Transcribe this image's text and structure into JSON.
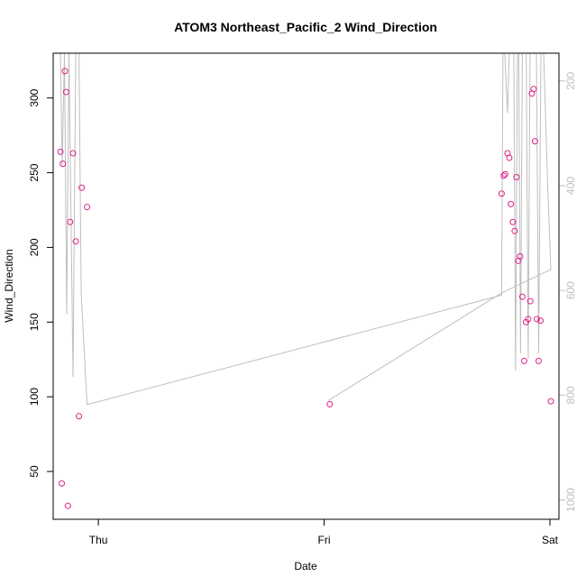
{
  "chart_data": {
    "type": "scatter",
    "title": "ATOM3 Northeast_Pacific_2 Wind_Direction",
    "xlabel": "Date",
    "ylabel": "Wind_Direction",
    "x_ticks": [
      {
        "label": "Thu",
        "x": 0
      },
      {
        "label": "Fri",
        "x": 1
      },
      {
        "label": "Sat",
        "x": 2
      }
    ],
    "xlim": [
      -0.2,
      2.04
    ],
    "ylim": [
      18,
      330
    ],
    "y_ticks": [
      50,
      100,
      150,
      200,
      250,
      300
    ],
    "y2lim": [
      1037,
      147
    ],
    "y2_ticks": [
      200,
      400,
      600,
      800,
      1000
    ],
    "grid": false,
    "colors": {
      "points": "#e0218a",
      "line": "#bebebe",
      "axis": "#000000",
      "right_axis": "#bebebe"
    },
    "series": [
      {
        "marker": "circle-open",
        "points": [
          {
            "x": -0.168,
            "y": 264
          },
          {
            "x": -0.162,
            "y": 42
          },
          {
            "x": -0.157,
            "y": 256
          },
          {
            "x": -0.148,
            "y": 318
          },
          {
            "x": -0.143,
            "y": 304
          },
          {
            "x": -0.135,
            "y": 27
          },
          {
            "x": -0.125,
            "y": 217
          },
          {
            "x": -0.112,
            "y": 263
          },
          {
            "x": -0.1,
            "y": 204
          },
          {
            "x": -0.086,
            "y": 87
          },
          {
            "x": -0.074,
            "y": 240
          },
          {
            "x": -0.05,
            "y": 227
          },
          {
            "x": 1.025,
            "y": 95
          },
          {
            "x": 1.786,
            "y": 236
          },
          {
            "x": 1.795,
            "y": 248
          },
          {
            "x": 1.802,
            "y": 249
          },
          {
            "x": 1.812,
            "y": 263
          },
          {
            "x": 1.82,
            "y": 260
          },
          {
            "x": 1.827,
            "y": 229
          },
          {
            "x": 1.836,
            "y": 217
          },
          {
            "x": 1.844,
            "y": 211
          },
          {
            "x": 1.852,
            "y": 247
          },
          {
            "x": 1.86,
            "y": 191
          },
          {
            "x": 1.868,
            "y": 194
          },
          {
            "x": 1.878,
            "y": 167
          },
          {
            "x": 1.886,
            "y": 124
          },
          {
            "x": 1.894,
            "y": 150
          },
          {
            "x": 1.904,
            "y": 152
          },
          {
            "x": 1.913,
            "y": 164
          },
          {
            "x": 1.92,
            "y": 303
          },
          {
            "x": 1.928,
            "y": 306
          },
          {
            "x": 1.934,
            "y": 271
          },
          {
            "x": 1.942,
            "y": 152
          },
          {
            "x": 1.95,
            "y": 124
          },
          {
            "x": 1.958,
            "y": 151
          },
          {
            "x": 2.004,
            "y": 97
          }
        ]
      },
      {
        "axis": "right",
        "style": "line",
        "points": [
          {
            "x": -0.168,
            "y": 147
          },
          {
            "x": -0.16,
            "y": 360
          },
          {
            "x": -0.15,
            "y": 147
          },
          {
            "x": -0.14,
            "y": 645
          },
          {
            "x": -0.13,
            "y": 147
          },
          {
            "x": -0.112,
            "y": 765
          },
          {
            "x": -0.1,
            "y": 147
          },
          {
            "x": -0.086,
            "y": 147
          },
          {
            "x": -0.076,
            "y": 607
          },
          {
            "x": -0.05,
            "y": 818
          },
          {
            "x": 1.786,
            "y": 609
          },
          {
            "x": 1.792,
            "y": 147
          },
          {
            "x": 1.8,
            "y": 147
          },
          {
            "x": 1.812,
            "y": 261
          },
          {
            "x": 1.82,
            "y": 147
          },
          {
            "x": 1.83,
            "y": 147
          },
          {
            "x": 1.84,
            "y": 147
          },
          {
            "x": 1.848,
            "y": 753
          },
          {
            "x": 1.856,
            "y": 147
          },
          {
            "x": 1.862,
            "y": 147
          },
          {
            "x": 1.87,
            "y": 720
          },
          {
            "x": 1.878,
            "y": 147
          },
          {
            "x": 1.886,
            "y": 147
          },
          {
            "x": 1.895,
            "y": 147
          },
          {
            "x": 1.904,
            "y": 730
          },
          {
            "x": 1.912,
            "y": 147
          },
          {
            "x": 1.92,
            "y": 147
          },
          {
            "x": 1.93,
            "y": 147
          },
          {
            "x": 1.94,
            "y": 147
          },
          {
            "x": 1.95,
            "y": 720
          },
          {
            "x": 1.96,
            "y": 147
          },
          {
            "x": 1.972,
            "y": 147
          },
          {
            "x": 1.99,
            "y": 400
          },
          {
            "x": 2.004,
            "y": 560
          },
          {
            "x": 1.785,
            "y": 605
          },
          {
            "x": 1.02,
            "y": 810
          }
        ]
      }
    ]
  }
}
